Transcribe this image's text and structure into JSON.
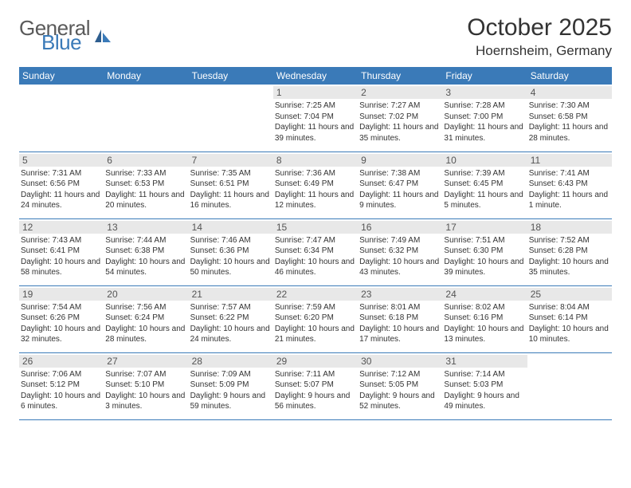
{
  "logo": {
    "text1": "General",
    "text2": "Blue"
  },
  "title": "October 2025",
  "location": "Hoernsheim, Germany",
  "colors": {
    "accent": "#3a7ab8",
    "gray": "#e8e8e8",
    "text": "#333333"
  },
  "dayHeaders": [
    "Sunday",
    "Monday",
    "Tuesday",
    "Wednesday",
    "Thursday",
    "Friday",
    "Saturday"
  ],
  "weeks": [
    [
      {
        "empty": true
      },
      {
        "empty": true
      },
      {
        "empty": true
      },
      {
        "day": "1",
        "sunrise": "7:25 AM",
        "sunset": "7:04 PM",
        "daylight": "11 hours and 39 minutes."
      },
      {
        "day": "2",
        "sunrise": "7:27 AM",
        "sunset": "7:02 PM",
        "daylight": "11 hours and 35 minutes."
      },
      {
        "day": "3",
        "sunrise": "7:28 AM",
        "sunset": "7:00 PM",
        "daylight": "11 hours and 31 minutes."
      },
      {
        "day": "4",
        "sunrise": "7:30 AM",
        "sunset": "6:58 PM",
        "daylight": "11 hours and 28 minutes."
      }
    ],
    [
      {
        "day": "5",
        "sunrise": "7:31 AM",
        "sunset": "6:56 PM",
        "daylight": "11 hours and 24 minutes."
      },
      {
        "day": "6",
        "sunrise": "7:33 AM",
        "sunset": "6:53 PM",
        "daylight": "11 hours and 20 minutes."
      },
      {
        "day": "7",
        "sunrise": "7:35 AM",
        "sunset": "6:51 PM",
        "daylight": "11 hours and 16 minutes."
      },
      {
        "day": "8",
        "sunrise": "7:36 AM",
        "sunset": "6:49 PM",
        "daylight": "11 hours and 12 minutes."
      },
      {
        "day": "9",
        "sunrise": "7:38 AM",
        "sunset": "6:47 PM",
        "daylight": "11 hours and 9 minutes."
      },
      {
        "day": "10",
        "sunrise": "7:39 AM",
        "sunset": "6:45 PM",
        "daylight": "11 hours and 5 minutes."
      },
      {
        "day": "11",
        "sunrise": "7:41 AM",
        "sunset": "6:43 PM",
        "daylight": "11 hours and 1 minute."
      }
    ],
    [
      {
        "day": "12",
        "sunrise": "7:43 AM",
        "sunset": "6:41 PM",
        "daylight": "10 hours and 58 minutes."
      },
      {
        "day": "13",
        "sunrise": "7:44 AM",
        "sunset": "6:38 PM",
        "daylight": "10 hours and 54 minutes."
      },
      {
        "day": "14",
        "sunrise": "7:46 AM",
        "sunset": "6:36 PM",
        "daylight": "10 hours and 50 minutes."
      },
      {
        "day": "15",
        "sunrise": "7:47 AM",
        "sunset": "6:34 PM",
        "daylight": "10 hours and 46 minutes."
      },
      {
        "day": "16",
        "sunrise": "7:49 AM",
        "sunset": "6:32 PM",
        "daylight": "10 hours and 43 minutes."
      },
      {
        "day": "17",
        "sunrise": "7:51 AM",
        "sunset": "6:30 PM",
        "daylight": "10 hours and 39 minutes."
      },
      {
        "day": "18",
        "sunrise": "7:52 AM",
        "sunset": "6:28 PM",
        "daylight": "10 hours and 35 minutes."
      }
    ],
    [
      {
        "day": "19",
        "sunrise": "7:54 AM",
        "sunset": "6:26 PM",
        "daylight": "10 hours and 32 minutes."
      },
      {
        "day": "20",
        "sunrise": "7:56 AM",
        "sunset": "6:24 PM",
        "daylight": "10 hours and 28 minutes."
      },
      {
        "day": "21",
        "sunrise": "7:57 AM",
        "sunset": "6:22 PM",
        "daylight": "10 hours and 24 minutes."
      },
      {
        "day": "22",
        "sunrise": "7:59 AM",
        "sunset": "6:20 PM",
        "daylight": "10 hours and 21 minutes."
      },
      {
        "day": "23",
        "sunrise": "8:01 AM",
        "sunset": "6:18 PM",
        "daylight": "10 hours and 17 minutes."
      },
      {
        "day": "24",
        "sunrise": "8:02 AM",
        "sunset": "6:16 PM",
        "daylight": "10 hours and 13 minutes."
      },
      {
        "day": "25",
        "sunrise": "8:04 AM",
        "sunset": "6:14 PM",
        "daylight": "10 hours and 10 minutes."
      }
    ],
    [
      {
        "day": "26",
        "sunrise": "7:06 AM",
        "sunset": "5:12 PM",
        "daylight": "10 hours and 6 minutes."
      },
      {
        "day": "27",
        "sunrise": "7:07 AM",
        "sunset": "5:10 PM",
        "daylight": "10 hours and 3 minutes."
      },
      {
        "day": "28",
        "sunrise": "7:09 AM",
        "sunset": "5:09 PM",
        "daylight": "9 hours and 59 minutes."
      },
      {
        "day": "29",
        "sunrise": "7:11 AM",
        "sunset": "5:07 PM",
        "daylight": "9 hours and 56 minutes."
      },
      {
        "day": "30",
        "sunrise": "7:12 AM",
        "sunset": "5:05 PM",
        "daylight": "9 hours and 52 minutes."
      },
      {
        "day": "31",
        "sunrise": "7:14 AM",
        "sunset": "5:03 PM",
        "daylight": "9 hours and 49 minutes."
      },
      {
        "empty": true
      }
    ]
  ],
  "labels": {
    "sunrise": "Sunrise:",
    "sunset": "Sunset:",
    "daylight": "Daylight:"
  }
}
